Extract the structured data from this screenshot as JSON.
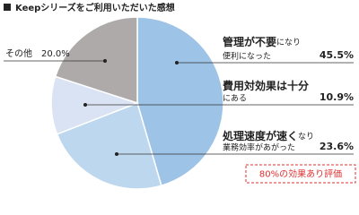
{
  "chart_data": {
    "type": "pie",
    "title": "Keepシリーズをご利用いただいた感想",
    "values": [
      45.5,
      23.6,
      10.9,
      20.0
    ],
    "value_labels": [
      "45.5%",
      "23.6%",
      "10.9%",
      "20.0%"
    ],
    "colors": [
      "#9dc3e6",
      "#bdd7ee",
      "#dae3f3",
      "#aeaaaa"
    ],
    "labels": [
      {
        "emphasis": "管理が不要",
        "text": "になり",
        "line2": "便利になった"
      },
      {
        "emphasis": "処理速度が速く",
        "text": "なり",
        "line2": "業務効率があがった"
      },
      {
        "emphasis": "費用対効果は十分",
        "line2": "にある"
      },
      {
        "text": "その他"
      }
    ],
    "annotation": "80%の効果あり評価"
  }
}
